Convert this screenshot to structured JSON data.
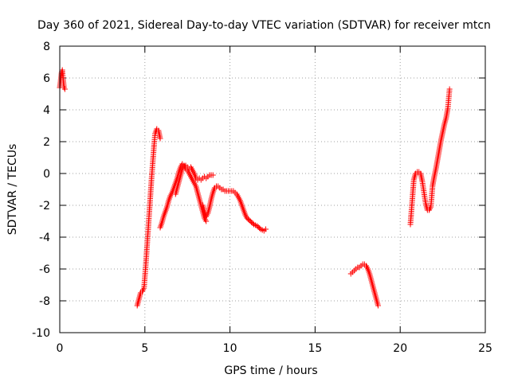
{
  "chart_data": {
    "type": "scatter",
    "title": "Day 360 of 2021, Sidereal Day-to-day VTEC variation (SDTVAR) for receiver mtcn",
    "xlabel": "GPS time / hours",
    "ylabel": "SDTVAR / TECUs",
    "xlim": [
      0,
      25
    ],
    "ylim": [
      -10,
      8
    ],
    "xticks": [
      0,
      5,
      10,
      15,
      20,
      25
    ],
    "yticks": [
      -10,
      -8,
      -6,
      -4,
      -2,
      0,
      2,
      4,
      6,
      8
    ],
    "grid": true,
    "marker": "+",
    "color": "#ff0000",
    "series": [
      {
        "name": "SDTVAR",
        "segments": [
          [
            [
              0.0,
              5.4
            ],
            [
              0.05,
              5.8
            ],
            [
              0.1,
              6.3
            ],
            [
              0.15,
              6.5
            ],
            [
              0.2,
              5.9
            ],
            [
              0.25,
              5.4
            ],
            [
              0.3,
              5.3
            ]
          ],
          [
            [
              4.55,
              -8.3
            ],
            [
              4.65,
              -7.9
            ],
            [
              4.75,
              -7.5
            ],
            [
              4.85,
              -7.4
            ],
            [
              4.95,
              -7.2
            ],
            [
              5.0,
              -6.5
            ],
            [
              5.05,
              -5.8
            ],
            [
              5.1,
              -5.0
            ],
            [
              5.15,
              -4.2
            ],
            [
              5.2,
              -3.4
            ],
            [
              5.25,
              -2.6
            ],
            [
              5.3,
              -1.8
            ],
            [
              5.35,
              -1.0
            ],
            [
              5.4,
              -0.2
            ],
            [
              5.45,
              0.5
            ],
            [
              5.5,
              1.2
            ],
            [
              5.55,
              1.9
            ],
            [
              5.6,
              2.5
            ],
            [
              5.7,
              2.8
            ],
            [
              5.8,
              2.7
            ],
            [
              5.9,
              2.2
            ]
          ],
          [
            [
              5.9,
              -3.4
            ],
            [
              6.0,
              -3.1
            ],
            [
              6.1,
              -2.7
            ],
            [
              6.2,
              -2.4
            ],
            [
              6.3,
              -2.1
            ],
            [
              6.4,
              -1.7
            ],
            [
              6.5,
              -1.4
            ],
            [
              6.6,
              -1.2
            ],
            [
              6.7,
              -0.9
            ],
            [
              6.8,
              -0.6
            ],
            [
              6.9,
              -0.3
            ],
            [
              7.0,
              0.1
            ],
            [
              7.1,
              0.4
            ],
            [
              7.2,
              0.6
            ],
            [
              7.3,
              0.5
            ],
            [
              7.4,
              0.3
            ],
            [
              7.5,
              0.2
            ],
            [
              7.6,
              0.0
            ],
            [
              7.7,
              -0.2
            ],
            [
              7.8,
              -0.4
            ],
            [
              7.9,
              -0.6
            ],
            [
              8.0,
              -0.8
            ],
            [
              8.1,
              -1.2
            ],
            [
              8.2,
              -1.6
            ],
            [
              8.3,
              -2.0
            ],
            [
              8.4,
              -2.4
            ],
            [
              8.5,
              -2.8
            ],
            [
              8.6,
              -3.0
            ]
          ],
          [
            [
              6.8,
              -1.3
            ],
            [
              6.9,
              -0.9
            ],
            [
              7.0,
              -0.5
            ],
            [
              7.1,
              -0.1
            ],
            [
              7.2,
              0.3
            ],
            [
              7.3,
              0.5
            ],
            [
              7.4,
              0.5
            ],
            [
              7.5,
              0.4
            ],
            [
              7.6,
              0.3
            ],
            [
              7.7,
              0.4
            ],
            [
              7.8,
              0.2
            ],
            [
              7.9,
              0.0
            ],
            [
              8.0,
              -0.3
            ],
            [
              8.1,
              -0.4
            ],
            [
              8.2,
              -0.3
            ],
            [
              8.3,
              -0.4
            ],
            [
              8.4,
              -0.3
            ],
            [
              8.5,
              -0.2
            ],
            [
              8.6,
              -0.3
            ],
            [
              8.7,
              -0.2
            ],
            [
              8.8,
              -0.1
            ],
            [
              8.9,
              -0.1
            ],
            [
              9.0,
              -0.1
            ]
          ],
          [
            [
              8.4,
              -2.0
            ],
            [
              8.5,
              -2.4
            ],
            [
              8.6,
              -2.7
            ],
            [
              8.7,
              -2.5
            ],
            [
              8.8,
              -2.1
            ],
            [
              8.9,
              -1.6
            ],
            [
              9.0,
              -1.2
            ],
            [
              9.1,
              -0.9
            ],
            [
              9.2,
              -0.8
            ],
            [
              9.3,
              -0.8
            ],
            [
              9.4,
              -0.9
            ],
            [
              9.5,
              -1.0
            ],
            [
              9.6,
              -1.0
            ],
            [
              9.7,
              -1.1
            ],
            [
              9.8,
              -1.1
            ],
            [
              9.9,
              -1.1
            ],
            [
              10.0,
              -1.1
            ],
            [
              10.1,
              -1.1
            ],
            [
              10.2,
              -1.1
            ],
            [
              10.3,
              -1.2
            ],
            [
              10.4,
              -1.3
            ],
            [
              10.5,
              -1.5
            ],
            [
              10.6,
              -1.7
            ],
            [
              10.7,
              -2.0
            ],
            [
              10.8,
              -2.3
            ],
            [
              10.9,
              -2.6
            ],
            [
              11.0,
              -2.8
            ],
            [
              11.2,
              -3.0
            ],
            [
              11.4,
              -3.2
            ],
            [
              11.6,
              -3.3
            ],
            [
              11.8,
              -3.5
            ],
            [
              12.0,
              -3.6
            ],
            [
              12.1,
              -3.5
            ]
          ],
          [
            [
              17.1,
              -6.3
            ],
            [
              17.2,
              -6.2
            ],
            [
              17.3,
              -6.1
            ],
            [
              17.4,
              -6.0
            ],
            [
              17.5,
              -5.9
            ],
            [
              17.6,
              -5.9
            ],
            [
              17.7,
              -5.8
            ],
            [
              17.8,
              -5.7
            ],
            [
              17.9,
              -5.7
            ],
            [
              18.0,
              -5.8
            ],
            [
              18.1,
              -6.0
            ],
            [
              18.2,
              -6.3
            ],
            [
              18.3,
              -6.7
            ],
            [
              18.4,
              -7.1
            ],
            [
              18.5,
              -7.5
            ],
            [
              18.6,
              -7.9
            ],
            [
              18.7,
              -8.3
            ]
          ],
          [
            [
              20.6,
              -3.2
            ],
            [
              20.65,
              -2.5
            ],
            [
              20.7,
              -1.8
            ],
            [
              20.75,
              -1.1
            ],
            [
              20.8,
              -0.4
            ],
            [
              20.9,
              0.0
            ],
            [
              21.0,
              0.1
            ],
            [
              21.1,
              0.1
            ],
            [
              21.2,
              0.0
            ],
            [
              21.3,
              -0.5
            ],
            [
              21.4,
              -1.2
            ],
            [
              21.5,
              -1.9
            ],
            [
              21.6,
              -2.3
            ],
            [
              21.7,
              -2.3
            ],
            [
              21.8,
              -2.1
            ],
            [
              21.85,
              -1.5
            ],
            [
              21.9,
              -0.8
            ],
            [
              22.0,
              -0.2
            ],
            [
              22.1,
              0.3
            ],
            [
              22.2,
              0.9
            ],
            [
              22.3,
              1.5
            ],
            [
              22.4,
              2.1
            ],
            [
              22.5,
              2.6
            ],
            [
              22.6,
              3.1
            ],
            [
              22.7,
              3.5
            ],
            [
              22.8,
              4.1
            ],
            [
              22.85,
              4.7
            ],
            [
              22.9,
              5.3
            ]
          ]
        ]
      }
    ]
  }
}
